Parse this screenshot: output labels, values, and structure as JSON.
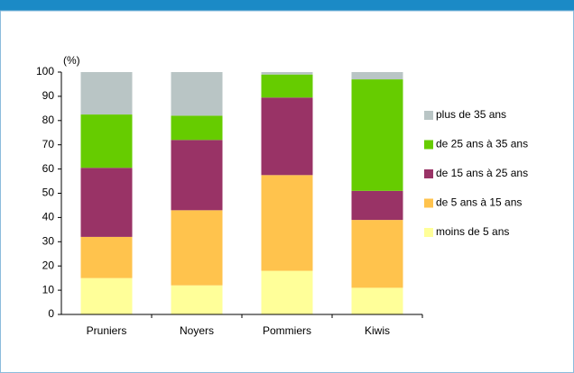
{
  "chart_data": {
    "type": "stacked_bar",
    "y_label": "(%)",
    "categories": [
      "Pruniers",
      "Noyers",
      "Pommiers",
      "Kiwis"
    ],
    "series": [
      {
        "name": "moins de 5 ans",
        "color": "#ffff99",
        "values": [
          15,
          12,
          18,
          11
        ]
      },
      {
        "name": "de 5 ans à 15 ans",
        "color": "#ffc34d",
        "values": [
          17,
          31,
          39.5,
          28
        ]
      },
      {
        "name": "de 15 ans à 25 ans",
        "color": "#993366",
        "values": [
          28.5,
          29,
          32,
          12
        ]
      },
      {
        "name": "de 25 ans à 35 ans",
        "color": "#66cc00",
        "values": [
          22,
          10,
          9.5,
          46
        ]
      },
      {
        "name": "plus de 35 ans",
        "color": "#b9c5c5",
        "values": [
          17.5,
          18,
          1,
          3
        ]
      }
    ],
    "ylim": [
      0,
      100
    ],
    "yticks": [
      0,
      10,
      20,
      30,
      40,
      50,
      60,
      70,
      80,
      90,
      100
    ],
    "legend": "right"
  }
}
